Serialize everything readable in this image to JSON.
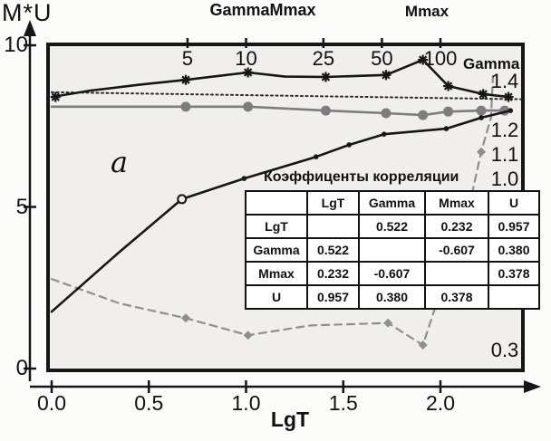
{
  "figure": {
    "y_axis_title": "M*U",
    "x_axis_title": "LgT",
    "panel_label": "a",
    "top_labels": [
      "GammaMmax",
      "Mmax"
    ],
    "gamma_curve_label": "Gamma"
  },
  "colors": {
    "ink": "#161616",
    "gray_line": "#7d7d7d",
    "gray_dashed": "#8f8f8f",
    "plot_bg": "#f0efec",
    "page_bg": "#fcfcfb",
    "table_bg": "#ffffff"
  },
  "chart_data": {
    "type": "line",
    "title": "",
    "xlabel": "LgT",
    "ylabel": "M*U",
    "xlim": [
      0,
      2.42
    ],
    "grid": false,
    "legend": "none",
    "x_axis": {
      "ticks": [
        {
          "value": 0.0,
          "label": "0.0"
        },
        {
          "value": 0.5,
          "label": "0.5"
        },
        {
          "value": 1.0,
          "label": "1.0"
        },
        {
          "value": 1.5,
          "label": "1.5"
        },
        {
          "value": 2.0,
          "label": "2.0"
        }
      ]
    },
    "left_axis": {
      "range": [
        0,
        10.1
      ],
      "ticks": [
        {
          "value": 10,
          "label": "10"
        },
        {
          "value": 5,
          "label": "5"
        },
        {
          "value": 0,
          "label": "0"
        }
      ]
    },
    "top_axis": {
      "note": "T values on log10 scale aligned with LgT axis",
      "ticks": [
        {
          "value": 5,
          "label": "5"
        },
        {
          "value": 10,
          "label": "10"
        },
        {
          "value": 25,
          "label": "25"
        },
        {
          "value": 50,
          "label": "50"
        },
        {
          "value": 100,
          "label": "100"
        }
      ]
    },
    "right_axis": {
      "ticks": [
        {
          "value": 1.4,
          "label": "1.4"
        },
        {
          "value": 1.2,
          "label": "1.2"
        },
        {
          "value": 1.1,
          "label": "1.1"
        },
        {
          "value": 1.0,
          "label": "1.0"
        },
        {
          "value": 0.3,
          "label": "0.3"
        }
      ]
    },
    "series": [
      {
        "id": "gamma-dashed",
        "name": "Gamma coefficient (gray dashed, right axis)",
        "axis": "right",
        "style": "dashed-gray",
        "points": [
          [
            0,
            0.57
          ],
          [
            0.35,
            0.47
          ],
          [
            0.69,
            0.41
          ],
          [
            1.01,
            0.34
          ],
          [
            1.33,
            0.38
          ],
          [
            1.73,
            0.39
          ],
          [
            1.91,
            0.3
          ],
          [
            2.16,
            0.91
          ],
          [
            2.21,
            1.09
          ],
          [
            2.26,
            1.23
          ],
          [
            2.27,
            1.4
          ]
        ],
        "markers": [
          {
            "x": 0.69,
            "y": 0.41,
            "t": "diamond"
          },
          {
            "x": 1.01,
            "y": 0.34,
            "t": "diamond"
          },
          {
            "x": 1.73,
            "y": 0.39,
            "t": "diamond"
          },
          {
            "x": 1.91,
            "y": 0.3,
            "t": "diamond"
          },
          {
            "x": 2.21,
            "y": 1.09,
            "t": "diamond"
          }
        ]
      },
      {
        "id": "dotted-trend",
        "name": "dotted trend line",
        "axis": "left",
        "style": "dotted-black",
        "points": [
          [
            0,
            8.55
          ],
          [
            1.2,
            8.44
          ],
          [
            2.42,
            8.33
          ]
        ],
        "markers": []
      },
      {
        "id": "gray-circles",
        "name": "GammaMmax (gray line, circle markers)",
        "axis": "left",
        "style": "solid-gray",
        "points": [
          [
            0,
            8.1
          ],
          [
            0.69,
            8.1
          ],
          [
            1.01,
            8.1
          ],
          [
            1.41,
            7.98
          ],
          [
            1.72,
            7.9
          ],
          [
            1.91,
            7.84
          ],
          [
            2.04,
            7.95
          ],
          [
            2.21,
            7.98
          ],
          [
            2.33,
            7.98
          ]
        ],
        "markers": [
          {
            "x": 0.69,
            "y": 8.1,
            "t": "gcircle"
          },
          {
            "x": 1.01,
            "y": 8.1,
            "t": "gcircle"
          },
          {
            "x": 1.41,
            "y": 7.98,
            "t": "gcircle"
          },
          {
            "x": 1.72,
            "y": 7.9,
            "t": "gcircle"
          },
          {
            "x": 1.91,
            "y": 7.84,
            "t": "gcircle"
          },
          {
            "x": 2.04,
            "y": 7.95,
            "t": "gcircle"
          },
          {
            "x": 2.21,
            "y": 7.98,
            "t": "gcircle"
          },
          {
            "x": 2.33,
            "y": 7.98,
            "t": "gcircle"
          }
        ]
      },
      {
        "id": "mmax-stars",
        "name": "Gamma/Mmax (black line, star markers, points labeled 5-100)",
        "axis": "left",
        "style": "solid-black",
        "points": [
          [
            0,
            8.4
          ],
          [
            0.2,
            8.6
          ],
          [
            0.45,
            8.78
          ],
          [
            0.69,
            8.93
          ],
          [
            1.01,
            9.16
          ],
          [
            1.2,
            9.03
          ],
          [
            1.41,
            9.02
          ],
          [
            1.72,
            9.08
          ],
          [
            1.91,
            9.55
          ],
          [
            2.04,
            8.74
          ],
          [
            2.22,
            8.49
          ],
          [
            2.35,
            8.4
          ]
        ],
        "markers": [
          {
            "x": 0.02,
            "y": 8.4,
            "t": "star"
          },
          {
            "x": 0.69,
            "y": 8.93,
            "t": "star"
          },
          {
            "x": 1.01,
            "y": 9.16,
            "t": "star"
          },
          {
            "x": 1.41,
            "y": 9.02,
            "t": "star"
          },
          {
            "x": 1.72,
            "y": 9.08,
            "t": "star"
          },
          {
            "x": 1.91,
            "y": 9.55,
            "t": "star"
          },
          {
            "x": 2.04,
            "y": 8.74,
            "t": "star"
          },
          {
            "x": 2.22,
            "y": 8.49,
            "t": "star"
          },
          {
            "x": 2.35,
            "y": 8.4,
            "t": "star"
          }
        ]
      },
      {
        "id": "u-line",
        "name": "U (black rising line, dot markers)",
        "axis": "left",
        "style": "solid-black",
        "points": [
          [
            0,
            1.76
          ],
          [
            0.34,
            3.56
          ],
          [
            0.67,
            5.24
          ],
          [
            0.99,
            5.88
          ],
          [
            1.36,
            6.55
          ],
          [
            1.53,
            6.92
          ],
          [
            1.71,
            7.25
          ],
          [
            2.03,
            7.42
          ],
          [
            2.21,
            7.76
          ],
          [
            2.36,
            7.98
          ]
        ],
        "markers": [
          {
            "x": 0.67,
            "y": 5.24,
            "t": "ocircle"
          },
          {
            "x": 0.99,
            "y": 5.88,
            "t": "dot"
          },
          {
            "x": 1.36,
            "y": 6.55,
            "t": "dot"
          },
          {
            "x": 1.53,
            "y": 6.92,
            "t": "dot"
          },
          {
            "x": 1.71,
            "y": 7.25,
            "t": "dot"
          },
          {
            "x": 2.03,
            "y": 7.42,
            "t": "dot"
          },
          {
            "x": 2.21,
            "y": 7.76,
            "t": "dot"
          },
          {
            "x": 2.36,
            "y": 7.98,
            "t": "dot"
          }
        ]
      }
    ]
  },
  "correlation_table": {
    "title": "Коэффиценты корреляции",
    "col_headers": [
      "",
      "LgT",
      "Gamma",
      "Mmax",
      "U"
    ],
    "rows": [
      {
        "header": "LgT",
        "cells": [
          "",
          "0.522",
          "0.232",
          "0.957"
        ]
      },
      {
        "header": "Gamma",
        "cells": [
          "0.522",
          "",
          "-0.607",
          "0.380"
        ]
      },
      {
        "header": "Mmax",
        "cells": [
          "0.232",
          "-0.607",
          "",
          "0.378"
        ]
      },
      {
        "header": "U",
        "cells": [
          "0.957",
          "0.380",
          "0.378",
          ""
        ]
      }
    ]
  }
}
